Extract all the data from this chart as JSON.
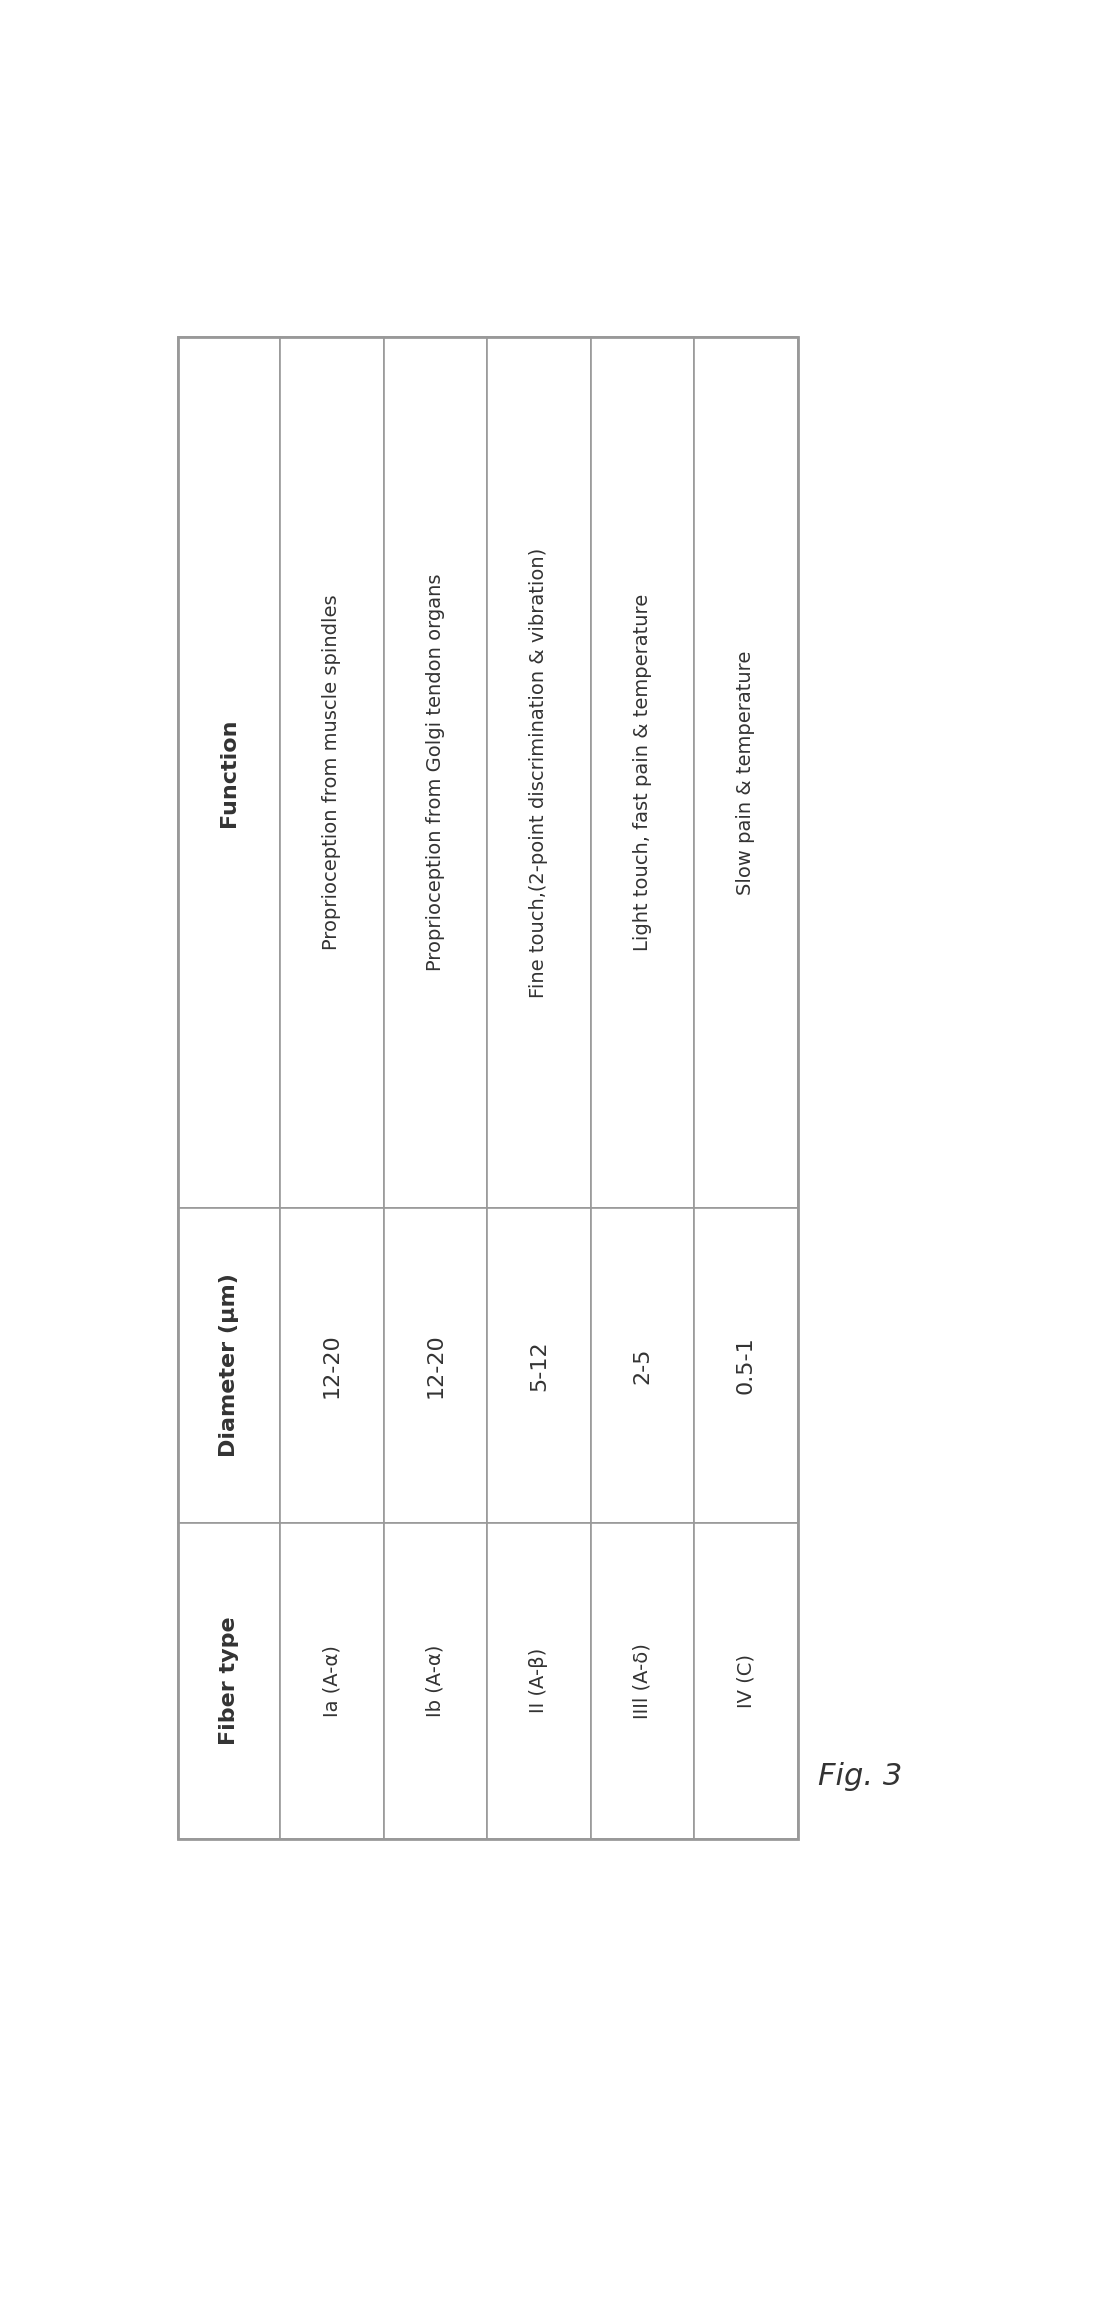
{
  "title": "Fig. 3",
  "headers": [
    "Function",
    "Diameter (μm)",
    "Fiber type"
  ],
  "data_cols": [
    [
      "Ia (A-α)",
      "12-20",
      "Ia (A-α)"
    ],
    [
      "Ib (A-α)",
      "12-20",
      "Ib (A-α)"
    ],
    [
      "II (A-β)",
      "5-12",
      "II (A-β)"
    ],
    [
      "IIIl (A-δ)",
      "2-5",
      "IIIl (A-δ)"
    ],
    [
      "IV (C)",
      "0.5-1",
      "IV (C)"
    ]
  ],
  "function_texts": [
    "Proprioception from muscle spindles",
    "Proprioception from Golgi tendon organs",
    "Fine touch,(2-point discrimination & vibration)",
    "Light touch, fast pain & temperature",
    "Slow pain & temperature"
  ],
  "diameter_texts": [
    "12-20",
    "12-20",
    "5-12",
    "2-5",
    "0.5-1"
  ],
  "fiber_texts": [
    "Ia (A-α)",
    "Ib (A-α)",
    "II (A-β)",
    "IIIl (A-δ)",
    "IV (C)"
  ],
  "background_color": "#ffffff",
  "border_color": "#999999",
  "header_font_size": 16,
  "cell_font_size": 14,
  "title_font_size": 22,
  "text_color": "#333333",
  "n_data_cols": 5
}
